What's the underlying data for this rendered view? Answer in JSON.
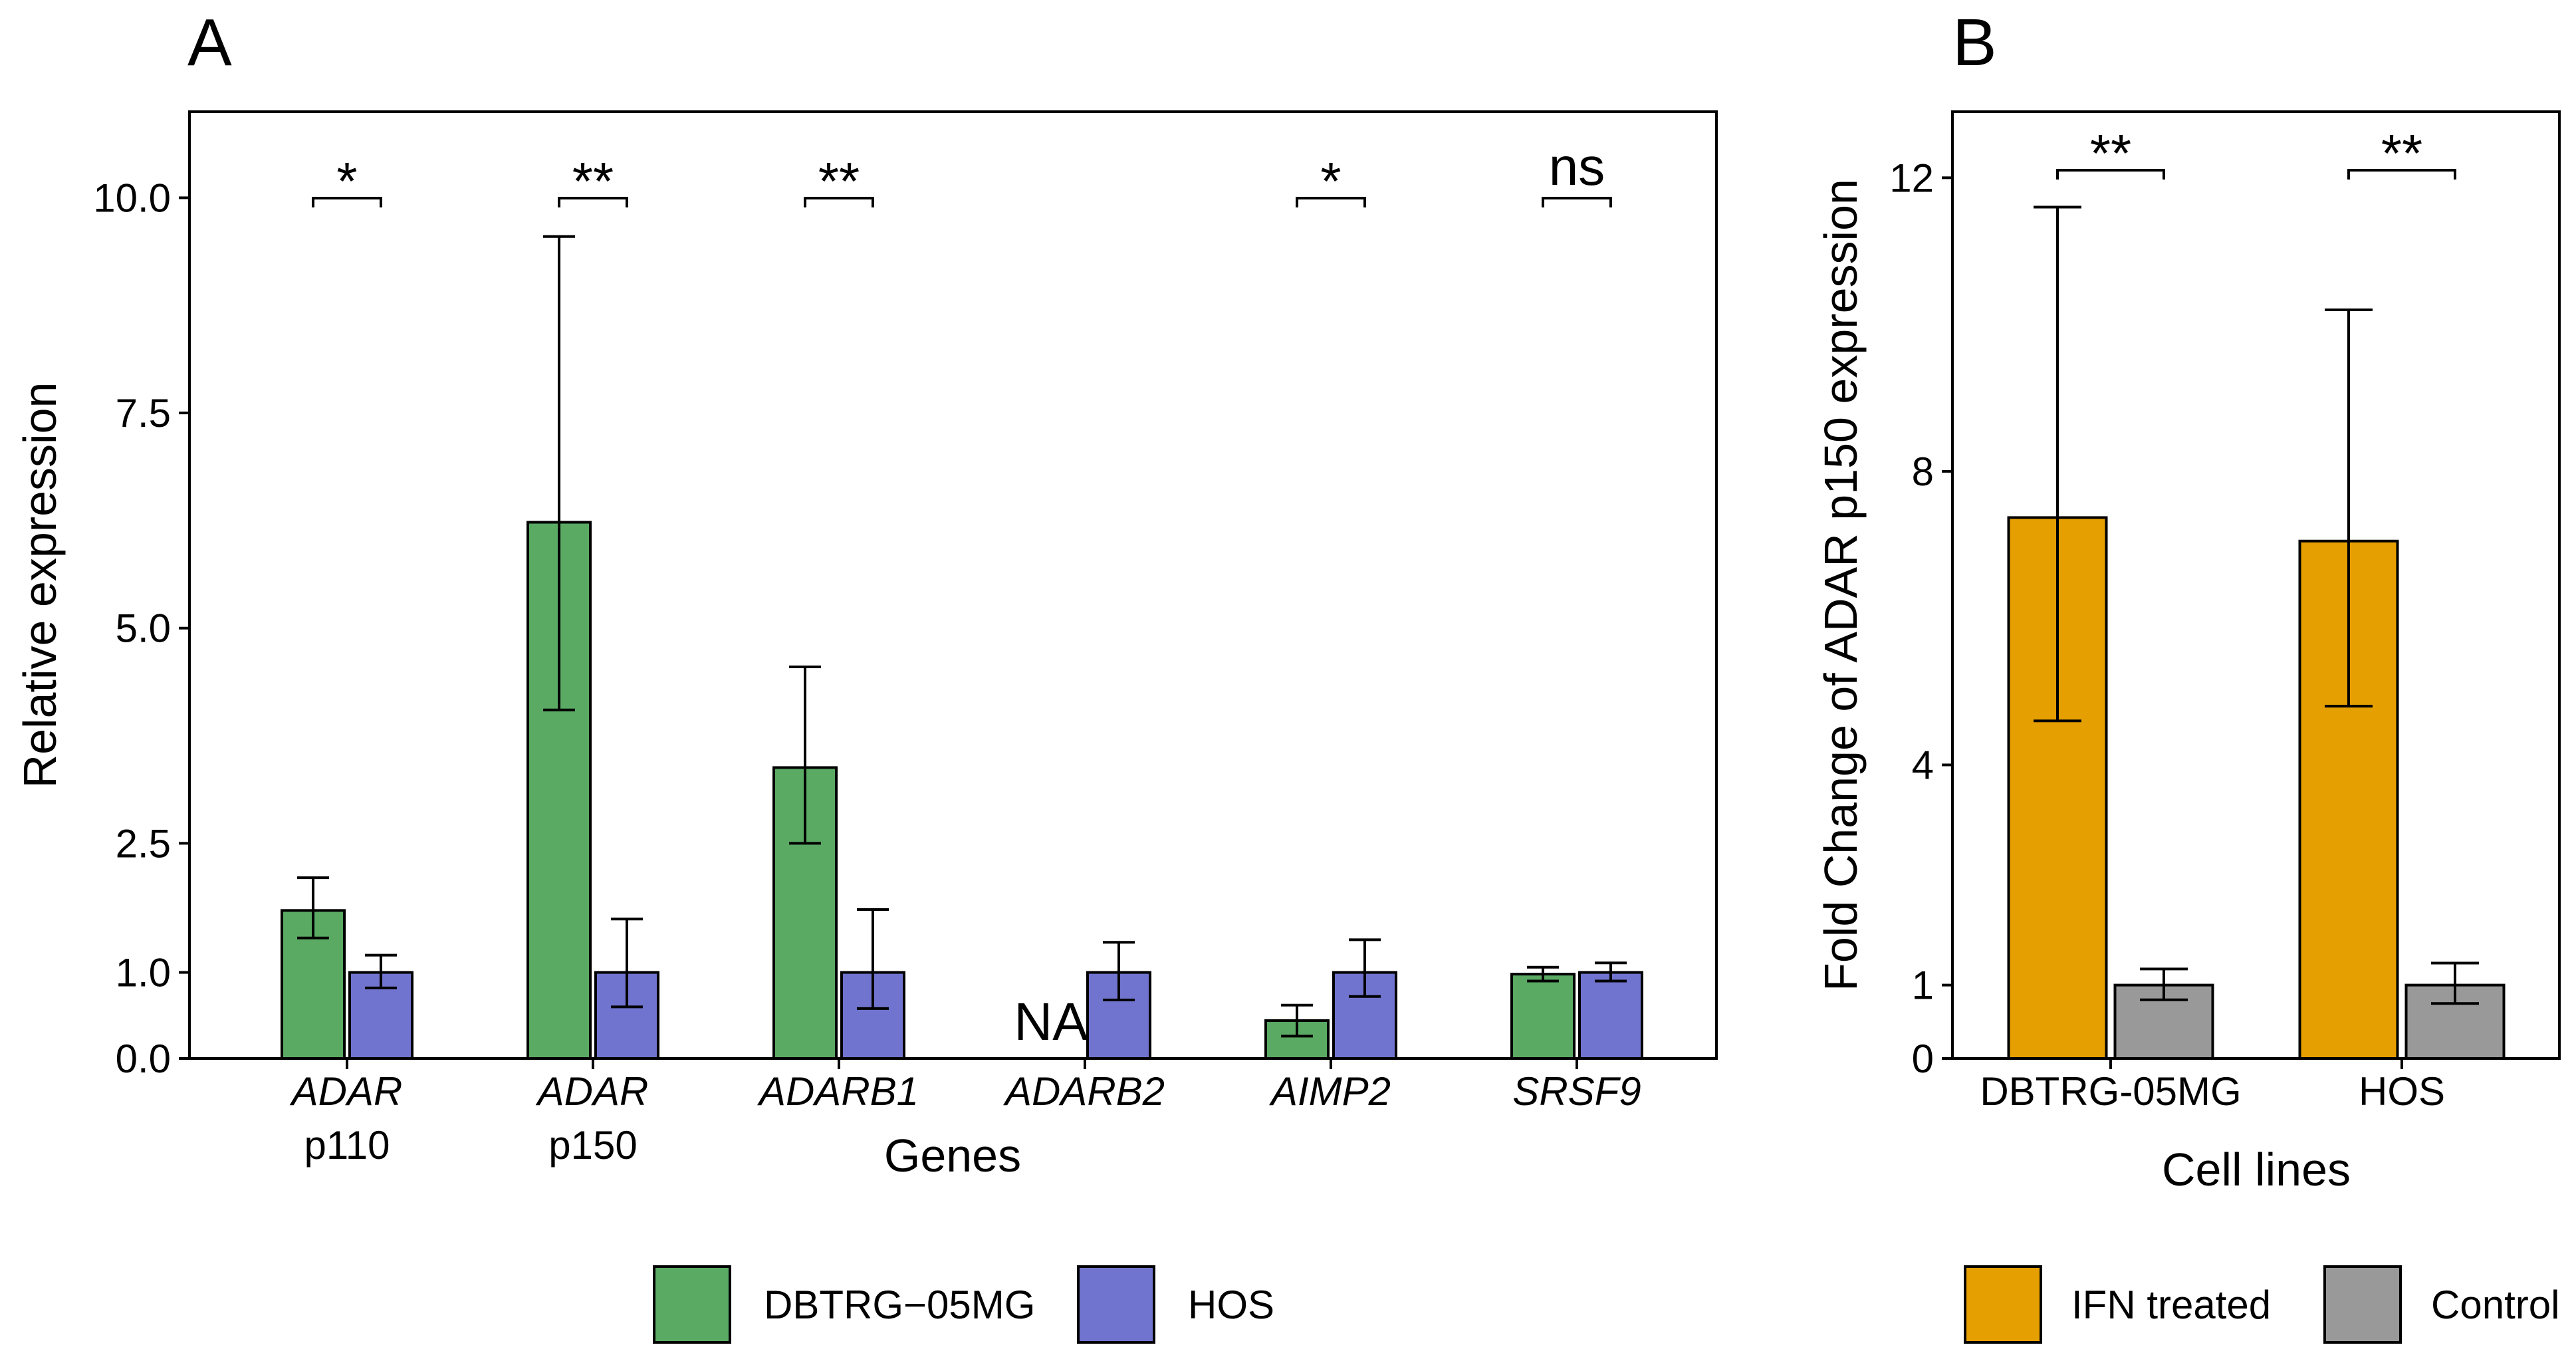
{
  "chart_data": [
    {
      "panel": "A",
      "type": "bar",
      "xlabel": "Genes",
      "ylabel": "Relative expression",
      "ylim": [
        0,
        11
      ],
      "yticks": [
        "0.0",
        "1.0",
        "2.5",
        "5.0",
        "7.5",
        "10.0"
      ],
      "categories": [
        {
          "line1": "ADAR",
          "line2": "p110"
        },
        {
          "line1": "ADAR",
          "line2": "p150"
        },
        {
          "line1": "ADARB1",
          "line2": ""
        },
        {
          "line1": "ADARB2",
          "line2": ""
        },
        {
          "line1": "AIMP2",
          "line2": ""
        },
        {
          "line1": "SRSF9",
          "line2": ""
        }
      ],
      "series": [
        {
          "name": "DBTRG−05MG",
          "color": "#5AAA64",
          "values": [
            1.72,
            6.23,
            3.38,
            null,
            0.44,
            0.98
          ],
          "err_low": [
            1.4,
            4.05,
            2.5,
            null,
            0.26,
            0.9
          ],
          "err_high": [
            2.1,
            9.55,
            4.55,
            null,
            0.62,
            1.06
          ]
        },
        {
          "name": "HOS",
          "color": "#7074CE",
          "values": [
            1.0,
            1.0,
            1.0,
            1.0,
            1.0,
            1.0
          ],
          "err_low": [
            0.82,
            0.6,
            0.58,
            0.68,
            0.72,
            0.9
          ],
          "err_high": [
            1.2,
            1.62,
            1.73,
            1.35,
            1.38,
            1.11
          ]
        }
      ],
      "na_label": "NA",
      "significance": [
        "*",
        "**",
        "**",
        "",
        "*",
        "ns"
      ],
      "legend": [
        "DBTRG−05MG",
        "HOS"
      ]
    },
    {
      "panel": "B",
      "type": "bar",
      "xlabel": "Cell lines",
      "ylabel": "Fold Change of ADAR p150 expression",
      "ylim": [
        0,
        12.9
      ],
      "yticks": [
        "0",
        "1",
        "4",
        "8",
        "12"
      ],
      "categories": [
        "DBTRG-05MG",
        "HOS"
      ],
      "series": [
        {
          "name": "IFN treated",
          "color": "#E69F00",
          "values": [
            7.37,
            7.05
          ],
          "err_low": [
            4.6,
            4.8
          ],
          "err_high": [
            11.6,
            10.2
          ]
        },
        {
          "name": "Control",
          "color": "#999999",
          "values": [
            1.0,
            1.0
          ],
          "err_low": [
            0.8,
            0.75
          ],
          "err_high": [
            1.22,
            1.3
          ]
        }
      ],
      "significance": [
        "**",
        "**"
      ],
      "legend": [
        "IFN treated",
        "Control"
      ]
    }
  ]
}
